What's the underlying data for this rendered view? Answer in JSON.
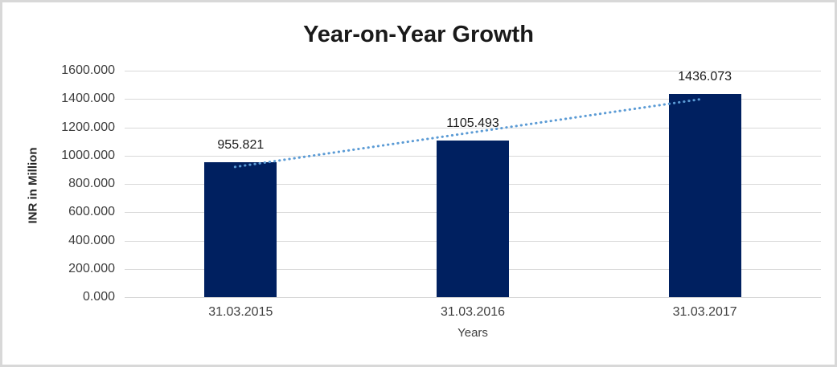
{
  "title": "Year-on-Year Growth",
  "colors": {
    "bar": "#002060",
    "trendline": "#5b9bd5",
    "gridline": "#d9d9d9",
    "axis_line": "#d6d6d6",
    "text": "#3f3f3f",
    "title_text": "#1a1a1a",
    "frame_border": "#d8d8d8",
    "background": "#ffffff"
  },
  "chart_data": {
    "type": "bar",
    "title": "Year-on-Year Growth",
    "categories": [
      "31.03.2015",
      "31.03.2016",
      "31.03.2017"
    ],
    "values": [
      955.821,
      1105.493,
      1436.073
    ],
    "data_labels": [
      "955.821",
      "1105.493",
      "1436.073"
    ],
    "xlabel": "Years",
    "ylabel": "INR in Million",
    "ylim": [
      0,
      1600
    ],
    "ytick_step": 200,
    "ytick_labels": [
      "0.000",
      "200.000",
      "400.000",
      "600.000",
      "800.000",
      "1000.000",
      "1200.000",
      "1400.000",
      "1600.000"
    ],
    "grid": true,
    "legend": "none",
    "trendline": {
      "type": "linear",
      "style": "dotted",
      "fitted_values": [
        925.67,
        1165.796,
        1405.922
      ]
    }
  }
}
